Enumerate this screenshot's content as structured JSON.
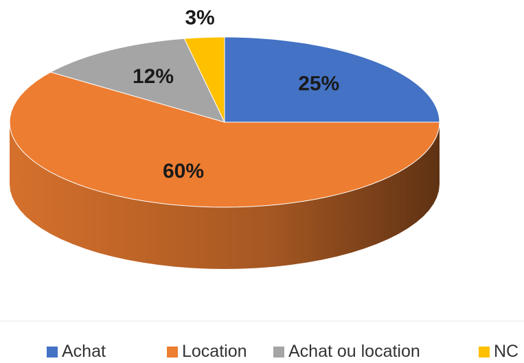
{
  "chart_data": {
    "type": "pie",
    "categories": [
      "Achat",
      "Location",
      "Achat ou location",
      "NC"
    ],
    "values": [
      25,
      60,
      12,
      3
    ],
    "value_labels": [
      "25%",
      "60%",
      "12%",
      "3%"
    ],
    "colors": [
      "#4472c4",
      "#ed7d31",
      "#a5a5a5",
      "#ffc000"
    ],
    "legend": "bottom"
  }
}
